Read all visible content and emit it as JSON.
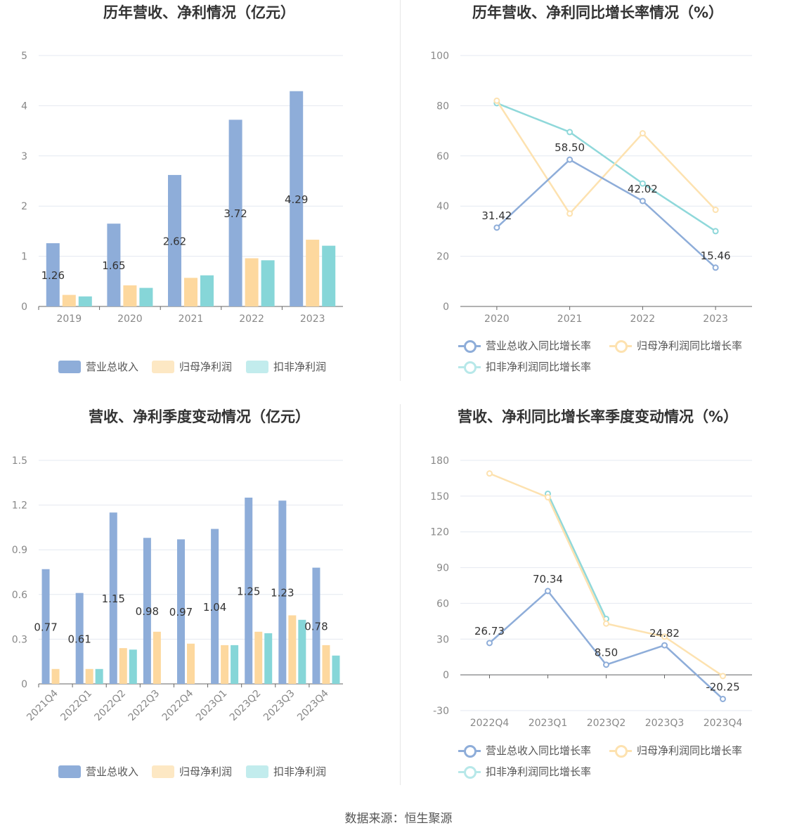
{
  "source": "数据来源：恒生聚源",
  "colors": {
    "revenue": "#8eadd9",
    "netprofit": "#fdd89e",
    "deducted": "#86d6d8"
  },
  "chart_data": [
    {
      "type": "bar",
      "title": "历年营收、净利情况（亿元）",
      "categories": [
        "2019",
        "2020",
        "2021",
        "2022",
        "2023"
      ],
      "ylim": [
        0,
        5
      ],
      "yticks": [
        "0",
        "1",
        "2",
        "3",
        "4",
        "5"
      ],
      "series": [
        {
          "name": "营业总收入",
          "values": [
            1.26,
            1.65,
            2.62,
            3.72,
            4.29
          ],
          "labels": [
            "1.26",
            "1.65",
            "2.62",
            "3.72",
            "4.29"
          ]
        },
        {
          "name": "归母净利润",
          "values": [
            0.23,
            0.42,
            0.57,
            0.96,
            1.33
          ]
        },
        {
          "name": "扣非净利润",
          "values": [
            0.2,
            0.37,
            0.62,
            0.92,
            1.21
          ]
        }
      ],
      "legend": "bottom"
    },
    {
      "type": "line",
      "title": "历年营收、净利同比增长率情况（%）",
      "categories": [
        "2020",
        "2021",
        "2022",
        "2023"
      ],
      "ylim": [
        0,
        100
      ],
      "yticks": [
        "0",
        "20",
        "40",
        "60",
        "80",
        "100"
      ],
      "series": [
        {
          "name": "营业总收入同比增长率",
          "values": [
            31.42,
            58.5,
            42.02,
            15.46
          ],
          "labels": [
            "31.42",
            "58.50",
            "42.02",
            "15.46"
          ]
        },
        {
          "name": "归母净利润同比增长率",
          "values": [
            82,
            37,
            69,
            38.5
          ]
        },
        {
          "name": "扣非净利润同比增长率",
          "values": [
            81,
            69.5,
            49,
            30
          ]
        }
      ],
      "legend": "bottom"
    },
    {
      "type": "bar",
      "title": "营收、净利季度变动情况（亿元）",
      "categories": [
        "2021Q4",
        "2022Q1",
        "2022Q2",
        "2022Q3",
        "2022Q4",
        "2023Q1",
        "2023Q2",
        "2023Q3",
        "2023Q4"
      ],
      "ylim": [
        0,
        1.5
      ],
      "yticks": [
        "0",
        "0.3",
        "0.6",
        "0.9",
        "1.2",
        "1.5"
      ],
      "series": [
        {
          "name": "营业总收入",
          "values": [
            0.77,
            0.61,
            1.15,
            0.98,
            0.97,
            1.04,
            1.25,
            1.23,
            0.78
          ],
          "labels": [
            "0.77",
            "0.61",
            "1.15",
            "0.98",
            "0.97",
            "1.04",
            "1.25",
            "1.23",
            "0.78"
          ]
        },
        {
          "name": "归母净利润",
          "values": [
            0.1,
            0.1,
            0.24,
            0.35,
            0.27,
            0.26,
            0.35,
            0.46,
            0.26
          ]
        },
        {
          "name": "扣非净利润",
          "values": [
            null,
            0.1,
            0.23,
            null,
            null,
            0.26,
            0.34,
            0.43,
            0.19
          ]
        }
      ],
      "legend": "bottom"
    },
    {
      "type": "line",
      "title": "营收、净利同比增长率季度变动情况（%）",
      "categories": [
        "2022Q4",
        "2023Q1",
        "2023Q2",
        "2023Q3",
        "2023Q4"
      ],
      "ylim": [
        -30,
        180
      ],
      "yticks": [
        "-30",
        "0",
        "30",
        "60",
        "90",
        "120",
        "150",
        "180"
      ],
      "series": [
        {
          "name": "营业总收入同比增长率",
          "values": [
            26.73,
            70.34,
            8.5,
            24.82,
            -20.25
          ],
          "labels": [
            "26.73",
            "70.34",
            "8.50",
            "24.82",
            "-20.25"
          ]
        },
        {
          "name": "归母净利润同比增长率",
          "values": [
            169,
            149,
            43,
            32,
            -1
          ]
        },
        {
          "name": "扣非净利润同比增长率",
          "values": [
            null,
            152,
            47,
            null,
            null
          ]
        }
      ],
      "legend": "bottom"
    }
  ]
}
